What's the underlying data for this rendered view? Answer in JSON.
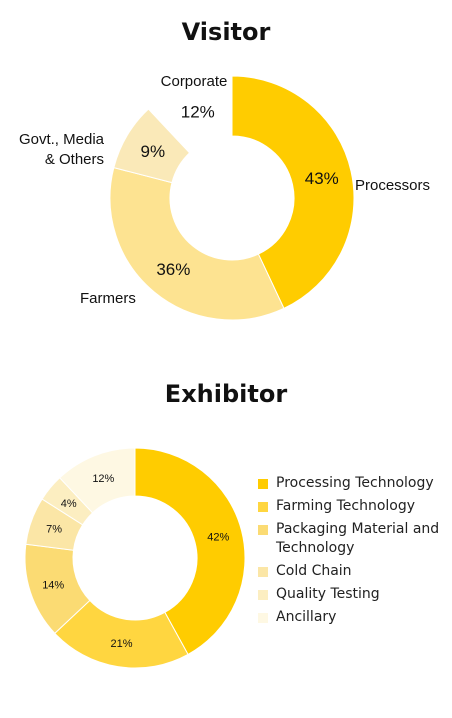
{
  "chart_data": [
    {
      "type": "pie",
      "variant": "donut",
      "title": "Visitor",
      "slices": [
        {
          "label": "Processors",
          "value": 43,
          "display": "43%",
          "color": "#FFCC00"
        },
        {
          "label": "Farmers",
          "value": 36,
          "display": "36%",
          "color": "#FDE391"
        },
        {
          "label": "Govt., Media & Others",
          "value": 9,
          "display": "9%",
          "color": "#FAE9B8"
        },
        {
          "label": "Corporate",
          "value": 12,
          "display": "12%",
          "color": "#FFFFFF"
        }
      ],
      "legend": "none"
    },
    {
      "type": "pie",
      "variant": "donut",
      "title": "Exhibitor",
      "slices": [
        {
          "label": "Processing Technology",
          "value": 42,
          "display": "42%",
          "color": "#FFCC00"
        },
        {
          "label": "Farming Technology",
          "value": 21,
          "display": "21%",
          "color": "#FFD640"
        },
        {
          "label": "Packaging Material and Technology",
          "value": 14,
          "display": "14%",
          "color": "#FBDB73"
        },
        {
          "label": "Cold Chain",
          "value": 7,
          "display": "7%",
          "color": "#FBE6A6"
        },
        {
          "label": "Quality Testing",
          "value": 4,
          "display": "4%",
          "color": "#FCEEC1"
        },
        {
          "label": "Ancillary",
          "value": 12,
          "display": "12%",
          "color": "#FEF8E3"
        }
      ],
      "legend": "right"
    }
  ]
}
